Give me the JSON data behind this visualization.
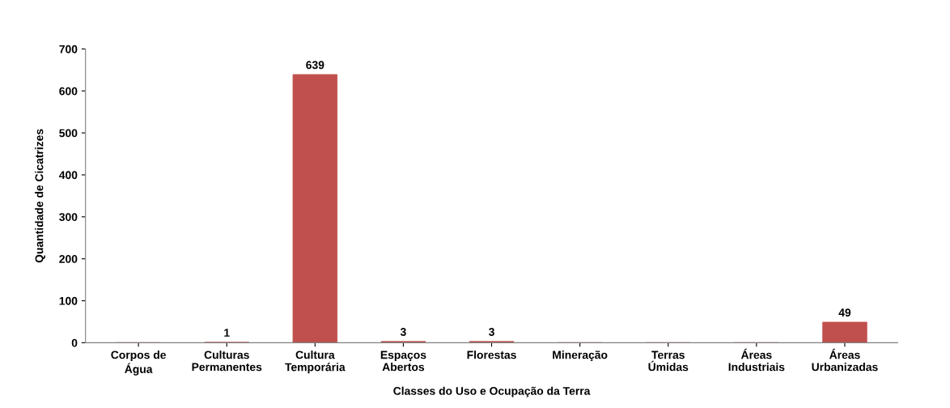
{
  "chart_data": {
    "type": "bar",
    "xlabel": "Classes do Uso e Ocupação da Terra",
    "ylabel": "Quantidade de Cicatrizes",
    "categories": [
      "Corpos de\nÁgua",
      "Culturas\nPermanentes",
      "Cultura\nTemporária",
      "Espaços\nAbertos",
      "Florestas",
      "Mineração",
      "Terras\nÚmidas",
      "Áreas\nIndustriais",
      "Áreas\nUrbanizadas"
    ],
    "values": [
      0,
      1,
      639,
      3,
      3,
      0,
      0,
      0,
      49
    ],
    "value_labels": [
      null,
      "1",
      "639",
      "3",
      "3",
      null,
      null,
      null,
      "49"
    ],
    "color": "#c0504d",
    "ylim": [
      0,
      700
    ],
    "yticks": [
      0,
      100,
      200,
      300,
      400,
      500,
      600,
      700
    ],
    "grid": false
  }
}
